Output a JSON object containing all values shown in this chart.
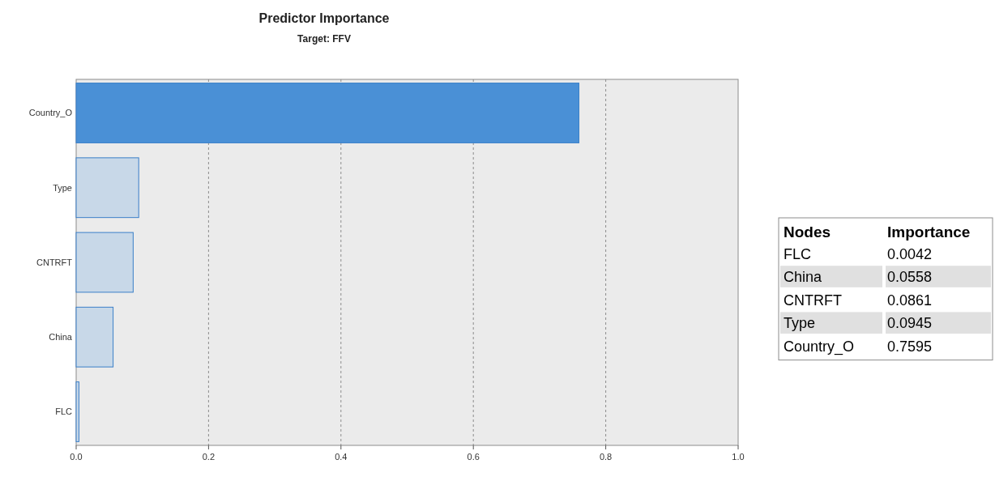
{
  "chart_data": [
    {
      "type": "bar",
      "orientation": "horizontal",
      "title": "Predictor Importance",
      "subtitle": "Target: FFV",
      "categories": [
        "Country_O",
        "Type",
        "CNTRFT",
        "China",
        "FLC"
      ],
      "values": [
        0.7595,
        0.0945,
        0.0861,
        0.0558,
        0.0042
      ],
      "colors": [
        "#4a90d6",
        "#c8d8e8",
        "#c8d8e8",
        "#c8d8e8",
        "#c8d8e8"
      ],
      "xlim": [
        0,
        1
      ],
      "xticks": [
        {
          "value": 0,
          "label": "0.0"
        },
        0.2,
        0.4,
        0.6,
        0.8,
        {
          "value": 1,
          "label": "1.0"
        }
      ],
      "grid": "x"
    },
    {
      "type": "other",
      "annotations": [
        "Nodes",
        "Importance"
      ],
      "categories": [
        "FLC",
        "China",
        "CNTRFT",
        "Type",
        "Country_O"
      ],
      "value_labels": [
        "0.0042",
        "0.0558",
        "0.0861",
        "0.0945",
        "0.7595"
      ]
    }
  ]
}
